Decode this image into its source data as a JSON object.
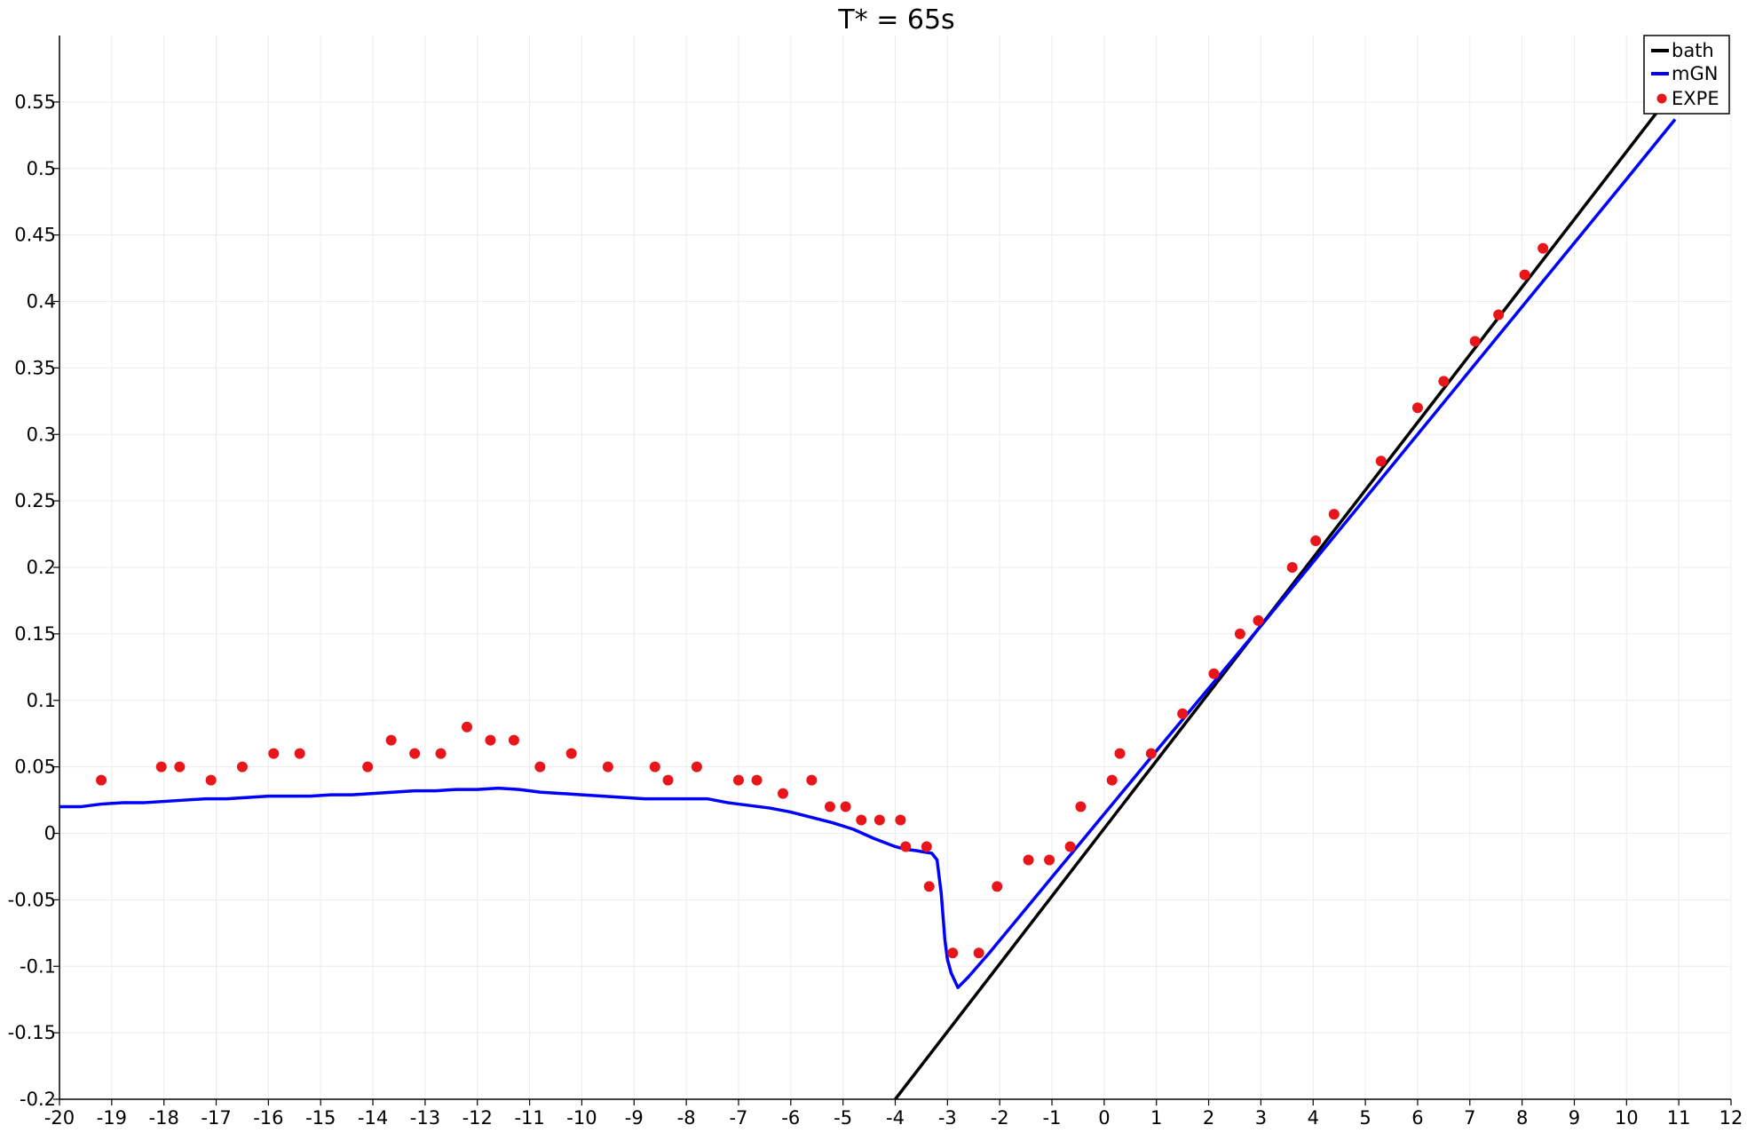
{
  "chart_data": {
    "type": "line",
    "title": "T* = 65s",
    "xlabel": "",
    "ylabel": "",
    "xlim": [
      -20,
      12
    ],
    "ylim": [
      -0.2,
      0.6
    ],
    "grid": true,
    "legend_position": "top-right",
    "x_ticks": [
      "-20",
      "-19",
      "-18",
      "-17",
      "-16",
      "-15",
      "-14",
      "-13",
      "-12",
      "-11",
      "-10",
      "-9",
      "-8",
      "-7",
      "-6",
      "-5",
      "-4",
      "-3",
      "-2",
      "-1",
      "0",
      "1",
      "2",
      "3",
      "4",
      "5",
      "6",
      "7",
      "8",
      "9",
      "10",
      "11",
      "12"
    ],
    "y_ticks": [
      "-0.2",
      "-0.15",
      "-0.1",
      "-0.05",
      "0",
      "0.05",
      "0.1",
      "0.15",
      "0.2",
      "0.25",
      "0.3",
      "0.35",
      "0.4",
      "0.45",
      "0.5",
      "0.55"
    ],
    "colors": {
      "bath": "#000000",
      "mGN": "#0000ff",
      "EXPE": "#e8161b",
      "grid": "#ececec"
    },
    "series": [
      {
        "name": "bath",
        "type": "line",
        "x": [
          -4.0,
          10.93
        ],
        "y": [
          -0.2,
          0.56
        ]
      },
      {
        "name": "mGN",
        "type": "line",
        "x": [
          -20,
          -19.6,
          -19.2,
          -18.8,
          -18.4,
          -18.0,
          -17.6,
          -17.2,
          -16.8,
          -16.4,
          -16.0,
          -15.6,
          -15.2,
          -14.8,
          -14.4,
          -14.0,
          -13.6,
          -13.2,
          -12.8,
          -12.4,
          -12.0,
          -11.6,
          -11.2,
          -10.8,
          -10.4,
          -10.0,
          -9.6,
          -9.2,
          -8.8,
          -8.4,
          -8.0,
          -7.6,
          -7.2,
          -6.8,
          -6.4,
          -6.0,
          -5.6,
          -5.2,
          -4.8,
          -4.4,
          -4.0,
          -3.8,
          -3.6,
          -3.45,
          -3.3,
          -3.2,
          -3.12,
          -3.05,
          -3.0,
          -2.93,
          -2.8,
          -2.6,
          -2.2,
          -1.8,
          -1.4,
          -1.0,
          -0.6,
          -0.2,
          0.2,
          0.6,
          1.0,
          2.0,
          3.0,
          4.0,
          5.0,
          6.0,
          7.0,
          8.0,
          9.0,
          10.0,
          10.93
        ],
        "y": [
          0.02,
          0.02,
          0.022,
          0.023,
          0.023,
          0.024,
          0.025,
          0.026,
          0.026,
          0.027,
          0.028,
          0.028,
          0.028,
          0.029,
          0.029,
          0.03,
          0.031,
          0.032,
          0.032,
          0.033,
          0.033,
          0.034,
          0.033,
          0.031,
          0.03,
          0.029,
          0.028,
          0.027,
          0.026,
          0.026,
          0.026,
          0.026,
          0.023,
          0.021,
          0.019,
          0.016,
          0.012,
          0.008,
          0.003,
          -0.004,
          -0.01,
          -0.012,
          -0.013,
          -0.014,
          -0.015,
          -0.02,
          -0.045,
          -0.08,
          -0.095,
          -0.105,
          -0.116,
          -0.108,
          -0.09,
          -0.071,
          -0.052,
          -0.033,
          -0.014,
          0.005,
          0.024,
          0.043,
          0.062,
          0.109,
          0.156,
          0.204,
          0.252,
          0.3,
          0.348,
          0.396,
          0.444,
          0.492,
          0.537
        ]
      },
      {
        "name": "EXPE",
        "type": "scatter",
        "x": [
          -19.2,
          -18.05,
          -17.7,
          -17.1,
          -16.5,
          -15.9,
          -15.4,
          -14.1,
          -13.65,
          -13.2,
          -12.7,
          -12.2,
          -11.75,
          -11.3,
          -10.8,
          -10.2,
          -9.5,
          -8.6,
          -8.35,
          -7.8,
          -7.0,
          -6.65,
          -6.15,
          -5.6,
          -5.25,
          -4.95,
          -4.65,
          -4.3,
          -3.9,
          -3.8,
          -3.4,
          -3.35,
          -2.9,
          -2.4,
          -2.05,
          -1.45,
          -1.05,
          -0.65,
          -0.45,
          0.15,
          0.3,
          0.9,
          1.5,
          2.1,
          2.6,
          2.95,
          3.6,
          4.05,
          4.4,
          5.3,
          6.0,
          6.5,
          7.1,
          7.55,
          8.05,
          8.4
        ],
        "y": [
          0.04,
          0.05,
          0.05,
          0.04,
          0.05,
          0.06,
          0.06,
          0.05,
          0.07,
          0.06,
          0.06,
          0.08,
          0.07,
          0.07,
          0.05,
          0.06,
          0.05,
          0.05,
          0.04,
          0.05,
          0.04,
          0.04,
          0.03,
          0.04,
          0.02,
          0.02,
          0.01,
          0.01,
          0.01,
          -0.01,
          -0.01,
          -0.04,
          -0.09,
          -0.09,
          -0.04,
          -0.02,
          -0.02,
          -0.01,
          0.02,
          0.04,
          0.06,
          0.06,
          0.09,
          0.12,
          0.15,
          0.16,
          0.2,
          0.22,
          0.24,
          0.28,
          0.32,
          0.34,
          0.37,
          0.39,
          0.42,
          0.44
        ]
      }
    ]
  }
}
